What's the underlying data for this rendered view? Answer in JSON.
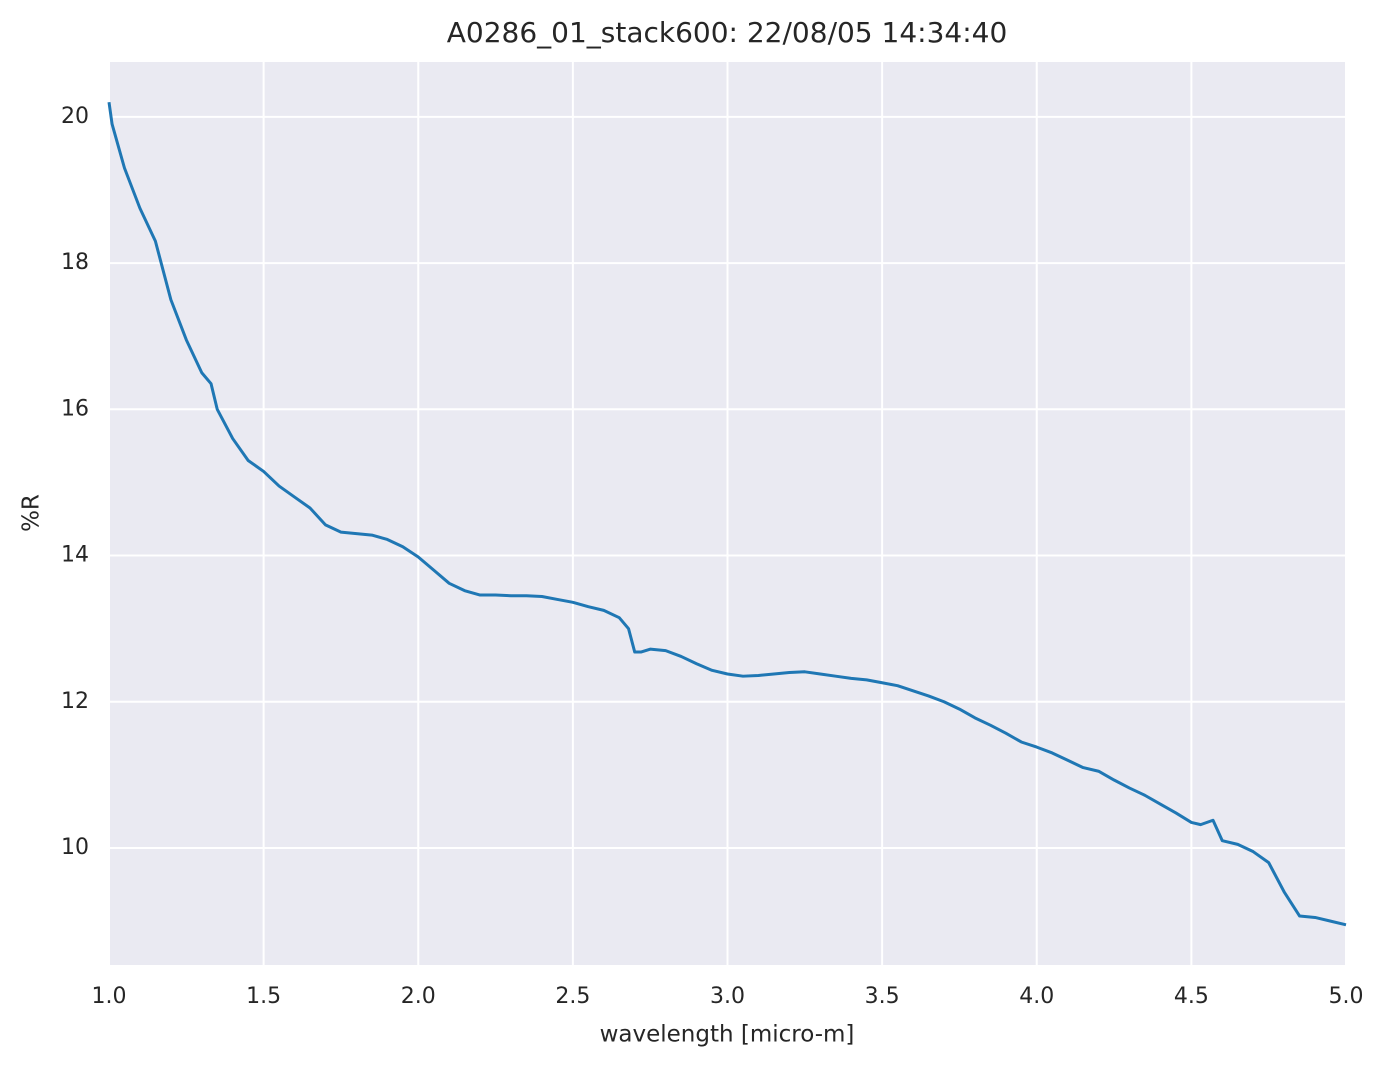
{
  "chart_data": {
    "type": "line",
    "title": "A0286_01_stack600:  22/08/05 14:34:40",
    "x_label": "wavelength [micro-m]",
    "y_label": "%R",
    "x": [
      1.0,
      1.01,
      1.05,
      1.1,
      1.15,
      1.2,
      1.25,
      1.3,
      1.33,
      1.35,
      1.4,
      1.45,
      1.5,
      1.55,
      1.6,
      1.65,
      1.7,
      1.75,
      1.8,
      1.85,
      1.9,
      1.95,
      2.0,
      2.05,
      2.1,
      2.15,
      2.2,
      2.25,
      2.3,
      2.35,
      2.4,
      2.45,
      2.5,
      2.55,
      2.6,
      2.65,
      2.68,
      2.7,
      2.72,
      2.75,
      2.8,
      2.85,
      2.9,
      2.95,
      3.0,
      3.05,
      3.1,
      3.15,
      3.2,
      3.25,
      3.3,
      3.35,
      3.4,
      3.45,
      3.5,
      3.55,
      3.6,
      3.65,
      3.7,
      3.75,
      3.8,
      3.85,
      3.9,
      3.95,
      4.0,
      4.05,
      4.1,
      4.15,
      4.2,
      4.25,
      4.3,
      4.35,
      4.4,
      4.45,
      4.5,
      4.53,
      4.57,
      4.6,
      4.65,
      4.7,
      4.75,
      4.8,
      4.85,
      4.9,
      4.95,
      5.0
    ],
    "series": [
      {
        "name": "%R",
        "color": "#1f77b4",
        "values": [
          20.2,
          19.9,
          19.3,
          18.75,
          18.3,
          17.5,
          16.95,
          16.5,
          16.35,
          16.0,
          15.6,
          15.3,
          15.15,
          14.95,
          14.8,
          14.65,
          14.42,
          14.32,
          14.3,
          14.28,
          14.22,
          14.12,
          13.98,
          13.8,
          13.62,
          13.52,
          13.46,
          13.46,
          13.45,
          13.45,
          13.44,
          13.4,
          13.36,
          13.3,
          13.25,
          13.15,
          13.0,
          12.68,
          12.68,
          12.72,
          12.7,
          12.62,
          12.52,
          12.43,
          12.38,
          12.35,
          12.36,
          12.38,
          12.4,
          12.41,
          12.38,
          12.35,
          12.32,
          12.3,
          12.26,
          12.22,
          12.15,
          12.08,
          12.0,
          11.9,
          11.78,
          11.68,
          11.57,
          11.45,
          11.38,
          11.3,
          11.2,
          11.1,
          11.05,
          10.93,
          10.82,
          10.72,
          10.6,
          10.48,
          10.35,
          10.32,
          10.38,
          10.1,
          10.05,
          9.95,
          9.8,
          9.4,
          9.07,
          9.05,
          9.0,
          8.95
        ]
      }
    ],
    "xlim": [
      1.0,
      5.0
    ],
    "ylim": [
      8.4,
      20.75
    ],
    "xticks": [
      {
        "value": 1,
        "label": "1.0"
      },
      1.5,
      {
        "value": 2,
        "label": "2.0"
      },
      2.5,
      {
        "value": 3,
        "label": "3.0"
      },
      3.5,
      {
        "value": 4,
        "label": "4.0"
      },
      4.5,
      {
        "value": 5,
        "label": "5.0"
      }
    ],
    "yticks": [
      10,
      12,
      14,
      16,
      18,
      20
    ],
    "grid": true
  }
}
